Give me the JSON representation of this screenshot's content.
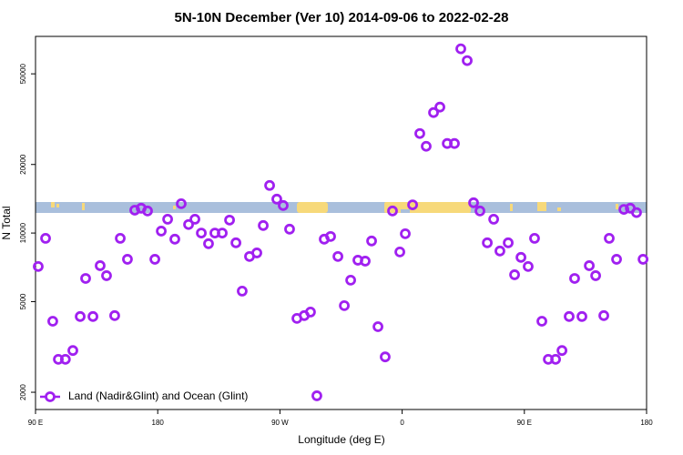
{
  "chart_data": {
    "type": "scatter",
    "title": "5N-10N December (Ver 10)   2014-09-06 to 2022-02-28",
    "x_label": "Longitude (deg E)",
    "y_label": "N Total",
    "log_y": true,
    "xlim": [
      90,
      540
    ],
    "xticks": [
      {
        "value": 90,
        "label": "90 E"
      },
      180,
      {
        "value": 270,
        "label": "90 W"
      },
      {
        "value": 360,
        "label": "0"
      },
      {
        "value": 450,
        "label": "90 E"
      },
      {
        "value": 540,
        "label": "180"
      }
    ],
    "ylim": [
      1680,
      73000
    ],
    "yticks": [
      2000,
      5000,
      10000,
      20000,
      50000
    ],
    "legend": "bottom-left",
    "series": [
      {
        "name": "Land (Nadir&Glint) and Ocean (Glint)",
        "color": "#a020f0",
        "x": [
          92,
          97.4,
          102.7,
          106.8,
          112,
          117.5,
          122.9,
          126.9,
          132.3,
          137.6,
          142.3,
          148.3,
          152.4,
          157.7,
          163.1,
          167.8,
          172.5,
          177.9,
          182.6,
          187.3,
          192.6,
          197.3,
          202.7,
          207.4,
          212.1,
          217.4,
          222.1,
          227.5,
          232.9,
          237.6,
          242.2,
          247.6,
          253,
          257.7,
          262.4,
          267.7,
          272.4,
          277.1,
          282.5,
          287.9,
          292.5,
          297.2,
          302.6,
          307.3,
          312.7,
          317.4,
          322.1,
          327.4,
          332.8,
          337.5,
          342.2,
          347.5,
          352.9,
          358.3,
          362.3,
          367.7,
          373,
          377.7,
          383.1,
          387.8,
          393.2,
          398.5,
          403.2,
          407.9,
          412.6,
          417.3,
          422.7,
          427.4,
          432,
          438.1,
          442.8,
          447.5,
          452.8,
          457.5,
          462.9,
          467.6,
          473,
          477.7,
          483,
          487,
          492.4,
          497.8,
          502.5,
          508.5,
          512.5,
          517.9,
          523.3,
          528,
          532.6,
          537.4
        ],
        "values": [
          7130,
          9480,
          4100,
          2790,
          2790,
          3050,
          4300,
          6320,
          4300,
          7190,
          6500,
          4340,
          9480,
          7670,
          12600,
          12850,
          12500,
          7670,
          10200,
          11500,
          9400,
          13450,
          10900,
          11500,
          10000,
          8980,
          10000,
          10000,
          11400,
          9060,
          5560,
          7890,
          8180,
          10790,
          16180,
          14090,
          13210,
          10400,
          4220,
          4340,
          4500,
          1930,
          9400,
          9660,
          7890,
          4800,
          6210,
          7600,
          7530,
          9230,
          3880,
          2860,
          12500,
          8260,
          9930,
          13300,
          27350,
          24040,
          33800,
          35730,
          24720,
          24720,
          64400,
          57150,
          13580,
          12500,
          9060,
          11500,
          8340,
          9060,
          6560,
          7820,
          7130,
          9480,
          4100,
          2790,
          2790,
          3050,
          4300,
          6320,
          4300,
          7190,
          6500,
          4340,
          9480,
          7670,
          12700,
          12850,
          12300,
          7670
        ]
      }
    ]
  }
}
